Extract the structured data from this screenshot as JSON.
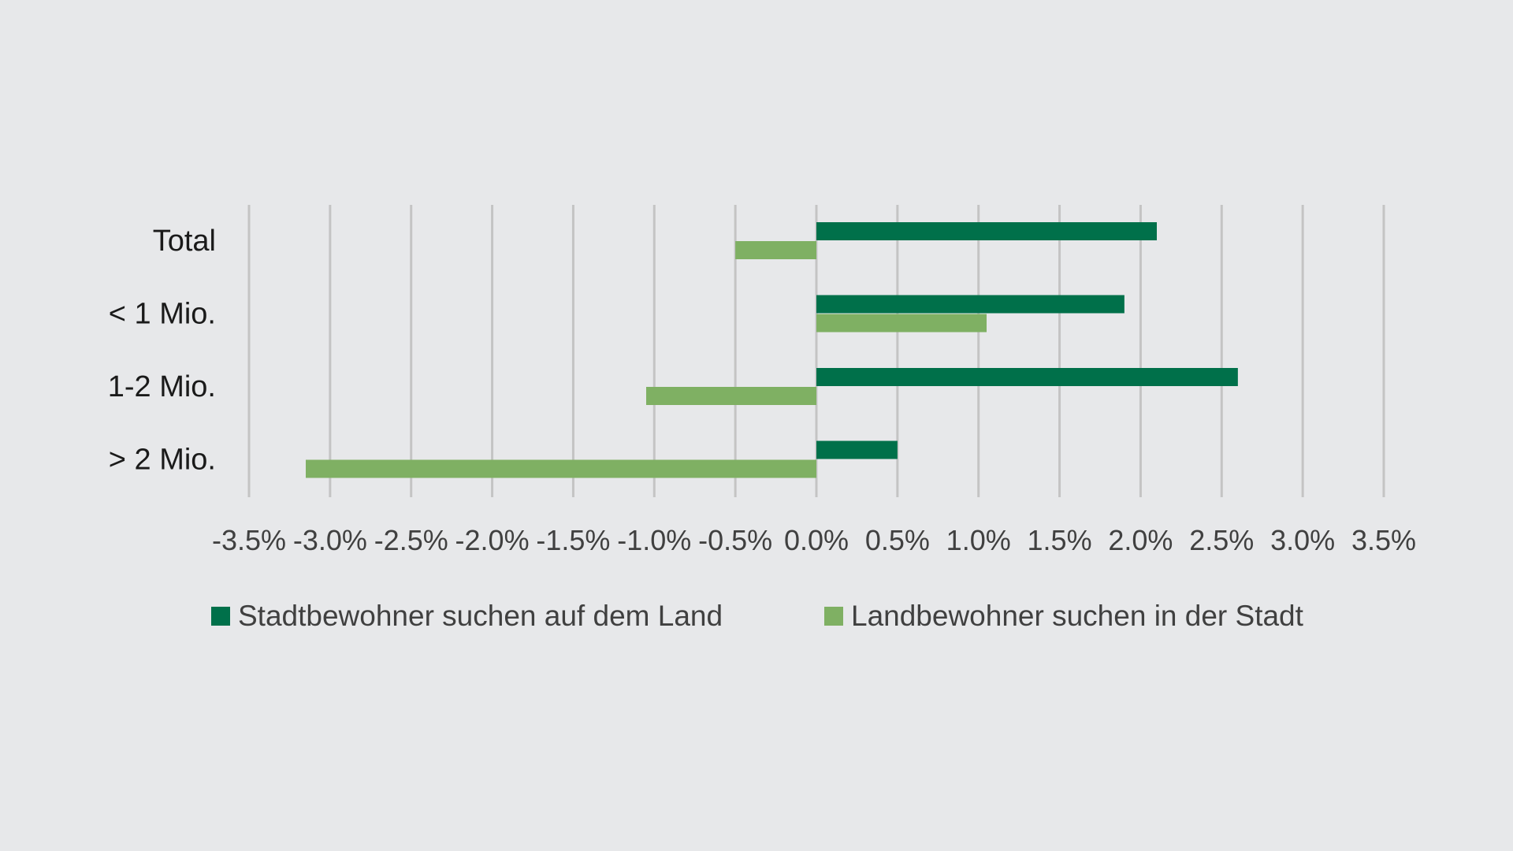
{
  "colors": {
    "background": "#e7e8ea",
    "series_dark": "#00704a",
    "series_light": "#7fb063",
    "grid": "#c4c4c4"
  },
  "chart_data": {
    "type": "bar",
    "orientation": "horizontal",
    "categories": [
      "Total",
      "< 1 Mio.",
      "1-2 Mio.",
      "> 2 Mio."
    ],
    "series": [
      {
        "name": "Stadtbewohner suchen auf dem Land",
        "color": "#00704a",
        "values": [
          2.1,
          1.9,
          2.6,
          0.5
        ]
      },
      {
        "name": "Landbewohner suchen in der Stadt",
        "color": "#7fb063",
        "values": [
          -0.5,
          1.05,
          -1.05,
          -3.15
        ]
      }
    ],
    "xlim": [
      -3.5,
      3.5
    ],
    "xticks": [
      -3.5,
      -3.0,
      -2.5,
      -2.0,
      -1.5,
      -1.0,
      -0.5,
      0.0,
      0.5,
      1.0,
      1.5,
      2.0,
      2.5,
      3.0,
      3.5
    ],
    "xtick_labels": [
      "-3.5%",
      "-3.0%",
      "-2.5%",
      "-2.0%",
      "-1.5%",
      "-1.0%",
      "-0.5%",
      "0.0%",
      "0.5%",
      "1.0%",
      "1.5%",
      "2.0%",
      "2.5%",
      "3.0%",
      "3.5%"
    ],
    "grid": "vertical",
    "legend_position": "bottom",
    "title": "",
    "xlabel": "",
    "ylabel": ""
  }
}
